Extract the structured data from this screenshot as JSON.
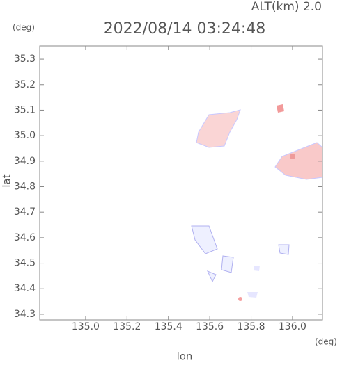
{
  "chart_data": {
    "type": "map",
    "title": "2022/08/14 03:24:48",
    "subtitle": "ALT(km) 2.0",
    "y_unit": "(deg)",
    "x_unit": "(deg)",
    "ylabel": "lat",
    "xlabel": "lon",
    "xlim": [
      134.778,
      136.145
    ],
    "ylim": [
      34.278,
      35.352
    ],
    "xticks": [
      {
        "value": 135.0,
        "label": "135.0"
      },
      135.2,
      135.4,
      135.6,
      135.8,
      {
        "value": 136.0,
        "label": "136.0"
      }
    ],
    "yticks": [
      34.3,
      34.4,
      34.5,
      34.6,
      34.7,
      34.8,
      34.9,
      {
        "value": 35.0,
        "label": "35.0"
      },
      35.1,
      35.2,
      35.3
    ]
  }
}
